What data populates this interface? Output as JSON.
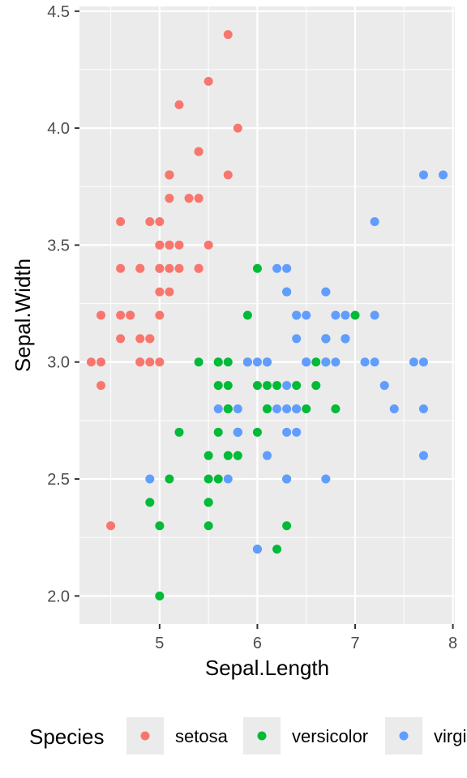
{
  "chart_data": {
    "type": "scatter",
    "xlabel": "Sepal.Length",
    "ylabel": "Sepal.Width",
    "xlim": [
      4.18,
      8.02
    ],
    "ylim": [
      1.88,
      4.52
    ],
    "x_ticks": [
      5,
      6,
      7,
      8
    ],
    "x_tick_labels": [
      "5",
      "6",
      "7",
      "8"
    ],
    "y_ticks": [
      2.0,
      2.5,
      3.0,
      3.5,
      4.0,
      4.5
    ],
    "y_tick_labels": [
      "2.0",
      "2.5",
      "3.0",
      "3.5",
      "4.0",
      "4.5"
    ],
    "grid": true,
    "background": "#ebebeb",
    "legend": {
      "title": "Species",
      "position": "bottom",
      "entries": [
        "setosa",
        "versicolor",
        "virginica"
      ]
    },
    "series": [
      {
        "name": "setosa",
        "color": "#f8766d",
        "points": [
          [
            5.1,
            3.5
          ],
          [
            4.9,
            3.0
          ],
          [
            4.7,
            3.2
          ],
          [
            4.6,
            3.1
          ],
          [
            5.0,
            3.6
          ],
          [
            5.4,
            3.9
          ],
          [
            4.6,
            3.4
          ],
          [
            5.0,
            3.4
          ],
          [
            4.4,
            2.9
          ],
          [
            4.9,
            3.1
          ],
          [
            5.4,
            3.7
          ],
          [
            4.8,
            3.4
          ],
          [
            4.8,
            3.0
          ],
          [
            4.3,
            3.0
          ],
          [
            5.8,
            4.0
          ],
          [
            5.7,
            4.4
          ],
          [
            5.4,
            3.9
          ],
          [
            5.1,
            3.5
          ],
          [
            5.7,
            3.8
          ],
          [
            5.1,
            3.8
          ],
          [
            5.4,
            3.4
          ],
          [
            5.1,
            3.7
          ],
          [
            4.6,
            3.6
          ],
          [
            5.1,
            3.3
          ],
          [
            4.8,
            3.4
          ],
          [
            5.0,
            3.0
          ],
          [
            5.0,
            3.4
          ],
          [
            5.2,
            3.5
          ],
          [
            5.2,
            3.4
          ],
          [
            4.7,
            3.2
          ],
          [
            4.8,
            3.1
          ],
          [
            5.4,
            3.4
          ],
          [
            5.2,
            4.1
          ],
          [
            5.5,
            4.2
          ],
          [
            4.9,
            3.1
          ],
          [
            5.0,
            3.2
          ],
          [
            5.5,
            3.5
          ],
          [
            4.9,
            3.6
          ],
          [
            4.4,
            3.0
          ],
          [
            5.1,
            3.4
          ],
          [
            5.0,
            3.5
          ],
          [
            4.5,
            2.3
          ],
          [
            4.4,
            3.2
          ],
          [
            5.0,
            3.5
          ],
          [
            5.1,
            3.8
          ],
          [
            4.8,
            3.0
          ],
          [
            5.1,
            3.8
          ],
          [
            4.6,
            3.2
          ],
          [
            5.3,
            3.7
          ],
          [
            5.0,
            3.3
          ]
        ]
      },
      {
        "name": "versicolor",
        "color": "#00ba38",
        "points": [
          [
            7.0,
            3.2
          ],
          [
            6.4,
            3.2
          ],
          [
            6.9,
            3.1
          ],
          [
            5.5,
            2.3
          ],
          [
            6.5,
            2.8
          ],
          [
            5.7,
            2.8
          ],
          [
            6.3,
            3.3
          ],
          [
            4.9,
            2.4
          ],
          [
            6.6,
            2.9
          ],
          [
            5.2,
            2.7
          ],
          [
            5.0,
            2.0
          ],
          [
            5.9,
            3.0
          ],
          [
            6.0,
            2.2
          ],
          [
            6.1,
            2.9
          ],
          [
            5.6,
            2.9
          ],
          [
            6.7,
            3.1
          ],
          [
            5.6,
            3.0
          ],
          [
            5.8,
            2.7
          ],
          [
            6.2,
            2.2
          ],
          [
            5.6,
            2.5
          ],
          [
            5.9,
            3.2
          ],
          [
            6.1,
            2.8
          ],
          [
            6.3,
            2.5
          ],
          [
            6.1,
            2.8
          ],
          [
            6.4,
            2.9
          ],
          [
            6.6,
            3.0
          ],
          [
            6.8,
            2.8
          ],
          [
            6.7,
            3.0
          ],
          [
            6.0,
            2.9
          ],
          [
            5.7,
            2.6
          ],
          [
            5.5,
            2.4
          ],
          [
            5.5,
            2.4
          ],
          [
            5.8,
            2.7
          ],
          [
            6.0,
            2.7
          ],
          [
            5.4,
            3.0
          ],
          [
            6.0,
            3.4
          ],
          [
            6.7,
            3.1
          ],
          [
            6.3,
            2.3
          ],
          [
            5.6,
            3.0
          ],
          [
            5.5,
            2.5
          ],
          [
            5.5,
            2.6
          ],
          [
            6.1,
            3.0
          ],
          [
            5.8,
            2.6
          ],
          [
            5.0,
            2.3
          ],
          [
            5.6,
            2.7
          ],
          [
            5.7,
            3.0
          ],
          [
            5.7,
            2.9
          ],
          [
            6.2,
            2.9
          ],
          [
            5.1,
            2.5
          ],
          [
            5.7,
            2.8
          ]
        ]
      },
      {
        "name": "virginica",
        "color": "#619cff",
        "points": [
          [
            6.3,
            3.3
          ],
          [
            5.8,
            2.7
          ],
          [
            7.1,
            3.0
          ],
          [
            6.3,
            2.9
          ],
          [
            6.5,
            3.0
          ],
          [
            7.6,
            3.0
          ],
          [
            4.9,
            2.5
          ],
          [
            7.3,
            2.9
          ],
          [
            6.7,
            2.5
          ],
          [
            7.2,
            3.6
          ],
          [
            6.5,
            3.2
          ],
          [
            6.4,
            2.7
          ],
          [
            6.8,
            3.0
          ],
          [
            5.7,
            2.5
          ],
          [
            5.8,
            2.8
          ],
          [
            6.4,
            3.2
          ],
          [
            6.5,
            3.0
          ],
          [
            7.7,
            3.8
          ],
          [
            7.7,
            2.6
          ],
          [
            6.0,
            2.2
          ],
          [
            6.9,
            3.2
          ],
          [
            5.6,
            2.8
          ],
          [
            7.7,
            2.8
          ],
          [
            6.3,
            2.7
          ],
          [
            6.7,
            3.3
          ],
          [
            7.2,
            3.2
          ],
          [
            6.2,
            2.8
          ],
          [
            6.1,
            3.0
          ],
          [
            6.4,
            2.8
          ],
          [
            7.2,
            3.0
          ],
          [
            7.4,
            2.8
          ],
          [
            7.9,
            3.8
          ],
          [
            6.4,
            2.8
          ],
          [
            6.3,
            2.8
          ],
          [
            6.1,
            2.6
          ],
          [
            7.7,
            3.0
          ],
          [
            6.3,
            3.4
          ],
          [
            6.4,
            3.1
          ],
          [
            6.0,
            3.0
          ],
          [
            6.9,
            3.1
          ],
          [
            6.7,
            3.1
          ],
          [
            6.9,
            3.1
          ],
          [
            5.8,
            2.7
          ],
          [
            6.8,
            3.2
          ],
          [
            6.7,
            3.3
          ],
          [
            6.7,
            3.0
          ],
          [
            6.3,
            2.5
          ],
          [
            6.5,
            3.0
          ],
          [
            6.2,
            3.4
          ],
          [
            5.9,
            3.0
          ]
        ]
      }
    ]
  }
}
